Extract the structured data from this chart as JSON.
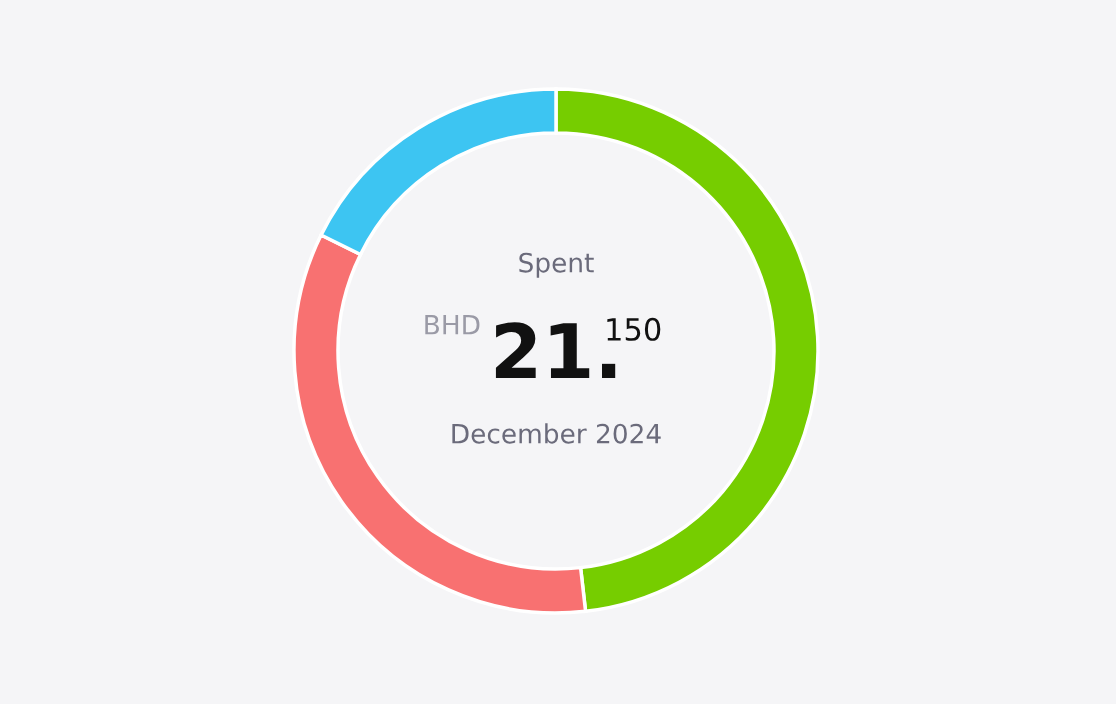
{
  "chart_data": {
    "type": "donut",
    "categories": [
      null,
      null,
      null
    ],
    "values": [
      48.2,
      34.1,
      17.7
    ],
    "colors": [
      "#76cd00",
      "#f87171",
      "#3dc5f2"
    ],
    "annotations": [
      "Spent",
      "BHD",
      "21.",
      "150",
      "December 2024"
    ],
    "legend": false
  }
}
